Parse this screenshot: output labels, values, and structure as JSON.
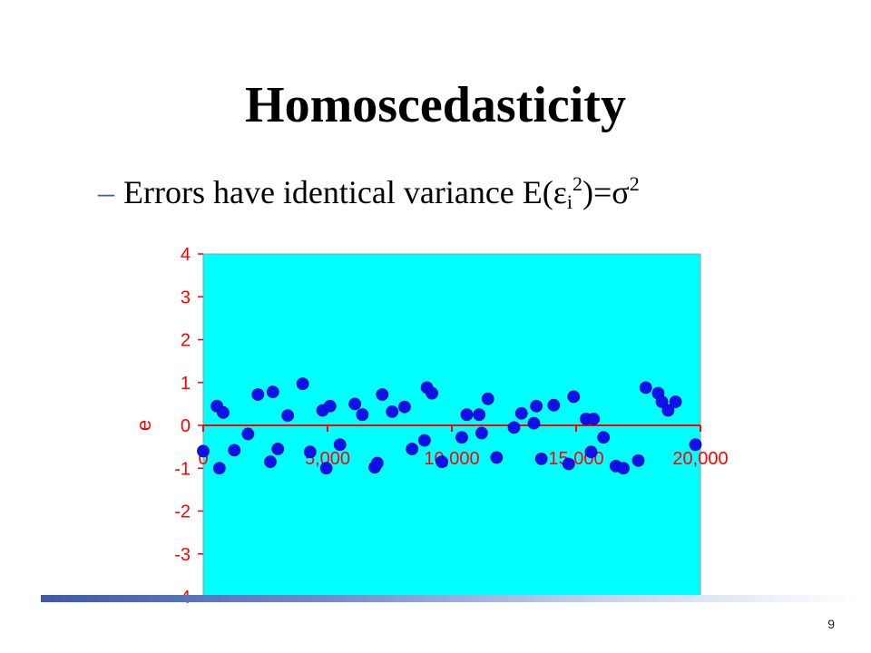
{
  "slide": {
    "title": "Homoscedasticity",
    "bullet_dash": "–",
    "bullet_text": "Errors have identical variance E(ε",
    "bullet_sub": "i",
    "bullet_sup1": "2",
    "bullet_mid": ")=σ",
    "bullet_sup2": "2",
    "page_number": "9"
  },
  "colors": {
    "plot_background": "#00ffff",
    "axis_text": "#ff0000",
    "markers": "#1010ee",
    "zero_line": "#ff0000"
  },
  "chart_data": {
    "type": "scatter",
    "title": "",
    "xlabel": "",
    "ylabel": "e",
    "xlim": [
      0,
      20000
    ],
    "ylim": [
      -4,
      4
    ],
    "xticks": [
      0,
      5000,
      10000,
      15000,
      20000
    ],
    "xtick_labels": [
      "0",
      "5,000",
      "10,000",
      "15,000",
      "20,000"
    ],
    "yticks": [
      -4,
      -3,
      -2,
      -1,
      0,
      1,
      2,
      3,
      4
    ],
    "ytick_labels": [
      "-4",
      "-3",
      "-2",
      "-1",
      "0",
      "1",
      "2",
      "3",
      "4"
    ],
    "grid": false,
    "series": [
      {
        "points": [
          [
            0,
            -0.6
          ],
          [
            550,
            0.45
          ],
          [
            650,
            -1.0
          ],
          [
            800,
            0.3
          ],
          [
            1250,
            -0.58
          ],
          [
            1800,
            -0.2
          ],
          [
            2200,
            0.72
          ],
          [
            2700,
            -0.85
          ],
          [
            2800,
            0.78
          ],
          [
            3000,
            -0.55
          ],
          [
            3400,
            0.23
          ],
          [
            4000,
            0.97
          ],
          [
            4300,
            -0.62
          ],
          [
            4800,
            0.35
          ],
          [
            4950,
            -1.0
          ],
          [
            5100,
            0.45
          ],
          [
            5500,
            -0.45
          ],
          [
            6100,
            0.5
          ],
          [
            6400,
            0.25
          ],
          [
            6900,
            -0.98
          ],
          [
            7000,
            -0.88
          ],
          [
            7200,
            0.72
          ],
          [
            7600,
            0.32
          ],
          [
            8100,
            0.43
          ],
          [
            8400,
            -0.55
          ],
          [
            8900,
            -0.35
          ],
          [
            9000,
            0.88
          ],
          [
            9200,
            0.75
          ],
          [
            9600,
            -0.85
          ],
          [
            10400,
            -0.28
          ],
          [
            10600,
            0.25
          ],
          [
            11100,
            0.25
          ],
          [
            11200,
            -0.18
          ],
          [
            11450,
            0.62
          ],
          [
            11800,
            -0.75
          ],
          [
            12500,
            -0.05
          ],
          [
            12800,
            0.28
          ],
          [
            13300,
            0.05
          ],
          [
            13400,
            0.45
          ],
          [
            13600,
            -0.78
          ],
          [
            14100,
            0.47
          ],
          [
            14700,
            -0.9
          ],
          [
            14900,
            0.67
          ],
          [
            15400,
            0.15
          ],
          [
            15600,
            -0.62
          ],
          [
            15700,
            0.15
          ],
          [
            16100,
            -0.28
          ],
          [
            16600,
            -0.95
          ],
          [
            16900,
            -1.0
          ],
          [
            17500,
            -0.82
          ],
          [
            17800,
            0.88
          ],
          [
            18300,
            0.75
          ],
          [
            18450,
            0.55
          ],
          [
            18700,
            0.35
          ],
          [
            19000,
            0.55
          ],
          [
            19800,
            -0.45
          ]
        ]
      }
    ]
  }
}
